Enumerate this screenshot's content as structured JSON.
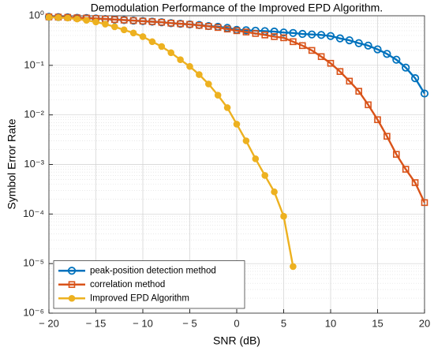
{
  "chart_data": {
    "type": "line",
    "title": "Demodulation Performance of the Improved EPD Algorithm.",
    "x_label": "SNR (dB)",
    "y_label": "Symbol Error Rate",
    "x": [
      -20,
      -19,
      -18,
      -17,
      -16,
      -15,
      -14,
      -13,
      -12,
      -11,
      -10,
      -9,
      -8,
      -7,
      -6,
      -5,
      -4,
      -3,
      -2,
      -1,
      0,
      1,
      2,
      3,
      4,
      5,
      6,
      7,
      8,
      9,
      10,
      11,
      12,
      13,
      14,
      15,
      16,
      17,
      18,
      19,
      20
    ],
    "series": [
      {
        "name": "peak-position detection method",
        "color": "#0072BD",
        "marker": "circle",
        "values": [
          0.95,
          0.94,
          0.93,
          0.91,
          0.9,
          0.88,
          0.86,
          0.84,
          0.82,
          0.8,
          0.78,
          0.76,
          0.74,
          0.71,
          0.69,
          0.67,
          0.65,
          0.62,
          0.6,
          0.57,
          0.52,
          0.51,
          0.5,
          0.49,
          0.48,
          0.46,
          0.45,
          0.43,
          0.42,
          0.41,
          0.39,
          0.35,
          0.32,
          0.28,
          0.25,
          0.21,
          0.17,
          0.13,
          0.09,
          0.055,
          0.027
        ]
      },
      {
        "name": "correlation method",
        "color": "#D95319",
        "marker": "square",
        "values": [
          0.95,
          0.94,
          0.93,
          0.91,
          0.9,
          0.88,
          0.86,
          0.84,
          0.82,
          0.8,
          0.78,
          0.76,
          0.74,
          0.71,
          0.69,
          0.67,
          0.64,
          0.61,
          0.58,
          0.54,
          0.5,
          0.47,
          0.44,
          0.41,
          0.38,
          0.36,
          0.3,
          0.25,
          0.2,
          0.15,
          0.11,
          0.075,
          0.048,
          0.03,
          0.016,
          0.008,
          0.0037,
          0.0016,
          0.0008,
          0.00043,
          0.00017
        ]
      },
      {
        "name": "Improved EPD Algorithm",
        "color": "#EDB120",
        "marker": "filled-circle",
        "values": [
          0.93,
          0.92,
          0.9,
          0.86,
          0.81,
          0.75,
          0.68,
          0.6,
          0.52,
          0.45,
          0.38,
          0.3,
          0.24,
          0.18,
          0.13,
          0.095,
          0.065,
          0.042,
          0.025,
          0.014,
          0.0065,
          0.003,
          0.0013,
          0.0006,
          0.00028,
          9e-05,
          8.7e-06,
          null,
          null,
          null,
          null,
          null,
          null,
          null,
          null,
          null,
          null,
          null,
          null,
          null,
          null
        ]
      }
    ],
    "xlim": [
      -20,
      20
    ],
    "xticks": [
      {
        "value": -20,
        "label": "− 20"
      },
      {
        "value": -15,
        "label": "− 15"
      },
      {
        "value": -10,
        "label": "− 10"
      },
      {
        "value": -5,
        "label": "− 5"
      },
      0,
      5,
      10,
      15,
      20
    ],
    "ylim": [
      1e-06,
      1
    ],
    "yticks": [
      {
        "value": 1e-06,
        "label": "10⁻⁶"
      },
      {
        "value": 1e-05,
        "label": "10⁻⁵"
      },
      {
        "value": 0.0001,
        "label": "10⁻⁴"
      },
      {
        "value": 0.001,
        "label": "10⁻³"
      },
      {
        "value": 0.01,
        "label": "10⁻²"
      },
      {
        "value": 0.1,
        "label": "10⁻¹"
      },
      {
        "value": 1,
        "label": "10⁰"
      }
    ],
    "y_scale": "log",
    "grid": true,
    "minor_grid": true,
    "legend": "lower left"
  }
}
